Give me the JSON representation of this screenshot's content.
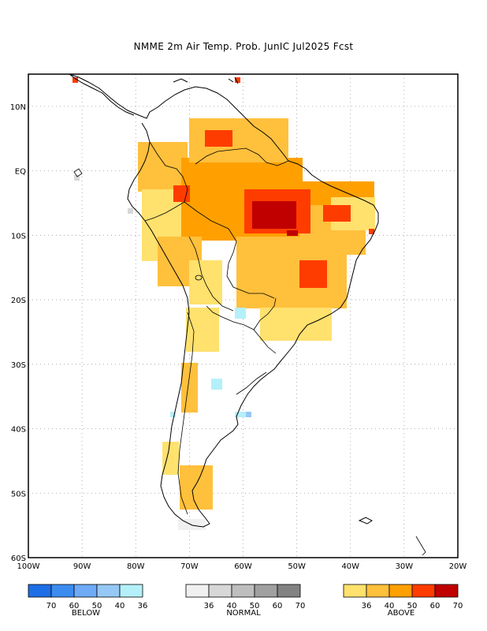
{
  "title": "NMME 2m Air Temp. Prob. JunIC  Jul2025 Fcst",
  "map": {
    "lon_range": [
      -100,
      -20
    ],
    "lat_range": [
      -60,
      15
    ],
    "lat_labels": [
      "10N",
      "EQ",
      "10S",
      "20S",
      "30S",
      "40S",
      "50S",
      "60S"
    ],
    "lon_labels": [
      "100W",
      "90W",
      "80W",
      "70W",
      "60W",
      "50W",
      "40W",
      "30W",
      "20W"
    ],
    "grid": "dotted"
  },
  "legend": {
    "below": {
      "caption": "BELOW",
      "ticks": [
        "70",
        "60",
        "50",
        "40",
        "36"
      ],
      "colors": [
        "#1e6ee6",
        "#3c8cf0",
        "#6eaaf5",
        "#96c8f5",
        "#b4f0fa"
      ]
    },
    "normal": {
      "caption": "NORMAL",
      "ticks": [
        "36",
        "40",
        "50",
        "60",
        "70"
      ],
      "colors": [
        "#f0f0f0",
        "#d7d7d7",
        "#bebebe",
        "#a0a0a0",
        "#828282"
      ]
    },
    "above": {
      "caption": "ABOVE",
      "ticks": [
        "36",
        "40",
        "50",
        "60",
        "70"
      ],
      "colors": [
        "#ffe16e",
        "#ffc03c",
        "#ffa000",
        "#ff3c00",
        "#c00000"
      ]
    }
  }
}
